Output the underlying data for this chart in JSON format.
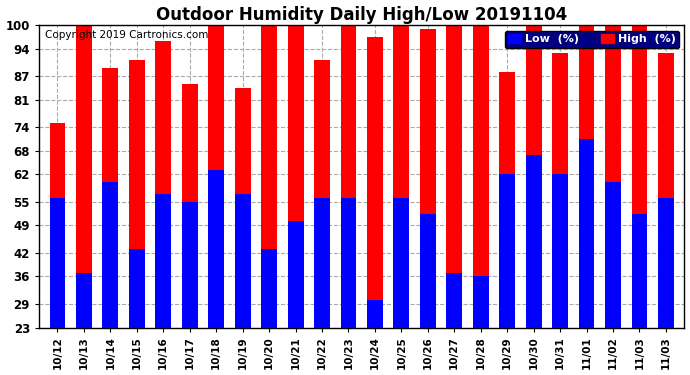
{
  "title": "Outdoor Humidity Daily High/Low 20191104",
  "copyright": "Copyright 2019 Cartronics.com",
  "background_color": "#ffffff",
  "plot_bg_color": "#ffffff",
  "bar_width": 0.6,
  "dates": [
    "10/12",
    "10/13",
    "10/14",
    "10/15",
    "10/16",
    "10/17",
    "10/18",
    "10/19",
    "10/20",
    "10/21",
    "10/22",
    "10/23",
    "10/24",
    "10/25",
    "10/26",
    "10/27",
    "10/28",
    "10/29",
    "10/30",
    "10/31",
    "11/01",
    "11/02",
    "11/03",
    "11/03"
  ],
  "low_values": [
    56,
    37,
    60,
    43,
    57,
    55,
    63,
    57,
    43,
    50,
    56,
    56,
    30,
    56,
    52,
    37,
    36,
    62,
    67,
    62,
    71,
    60,
    52,
    56
  ],
  "high_values": [
    75,
    100,
    89,
    91,
    96,
    85,
    100,
    84,
    100,
    100,
    91,
    100,
    97,
    100,
    99,
    100,
    100,
    88,
    100,
    93,
    100,
    100,
    100,
    93
  ],
  "low_color": "#0000ff",
  "high_color": "#ff0000",
  "yticks": [
    23,
    29,
    36,
    42,
    49,
    55,
    62,
    68,
    74,
    81,
    87,
    94,
    100
  ],
  "ylim": [
    23,
    100
  ],
  "grid_color": "#aaaaaa",
  "legend_low_label": "Low  (%)",
  "legend_high_label": "High  (%)",
  "legend_bg_color": "#000080",
  "title_fontsize": 12,
  "tick_fontsize": 8.5,
  "xlabel_fontsize": 7.5,
  "copyright_fontsize": 7.5
}
